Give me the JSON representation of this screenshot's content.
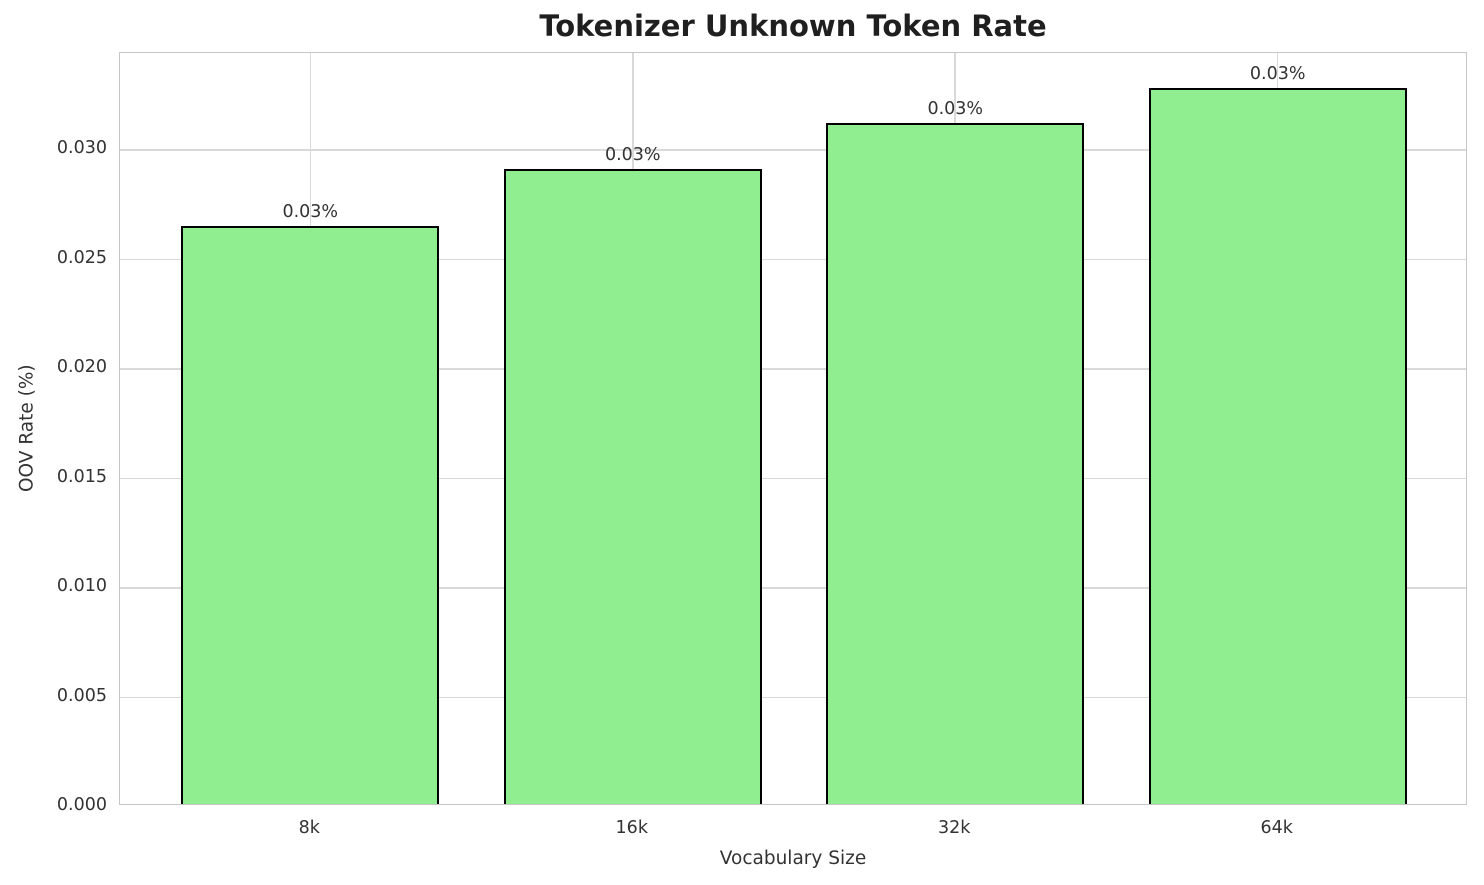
{
  "chart_data": {
    "type": "bar",
    "title": "Tokenizer Unknown Token Rate",
    "xlabel": "Vocabulary Size",
    "ylabel": "OOV Rate (%)",
    "categories": [
      "8k",
      "16k",
      "32k",
      "64k"
    ],
    "values": [
      0.0264,
      0.029,
      0.0311,
      0.0327
    ],
    "bar_labels": [
      "0.03%",
      "0.03%",
      "0.03%",
      "0.03%"
    ],
    "yticks": [
      0.0,
      0.005,
      0.01,
      0.015,
      0.02,
      0.025,
      0.03
    ],
    "ytick_labels": [
      "0.000",
      "0.005",
      "0.010",
      "0.015",
      "0.020",
      "0.025",
      "0.030"
    ],
    "ylim": [
      0,
      0.0344
    ],
    "grid": true,
    "legend": "none",
    "bar_color": "#90EE90",
    "bar_edge_color": "#000000",
    "grid_color": "#d9d9d9",
    "axes_edge_color": "#c6c6c6",
    "text_color": "#333333",
    "title_color": "#1f1f1f",
    "background_color": "#ffffff"
  }
}
